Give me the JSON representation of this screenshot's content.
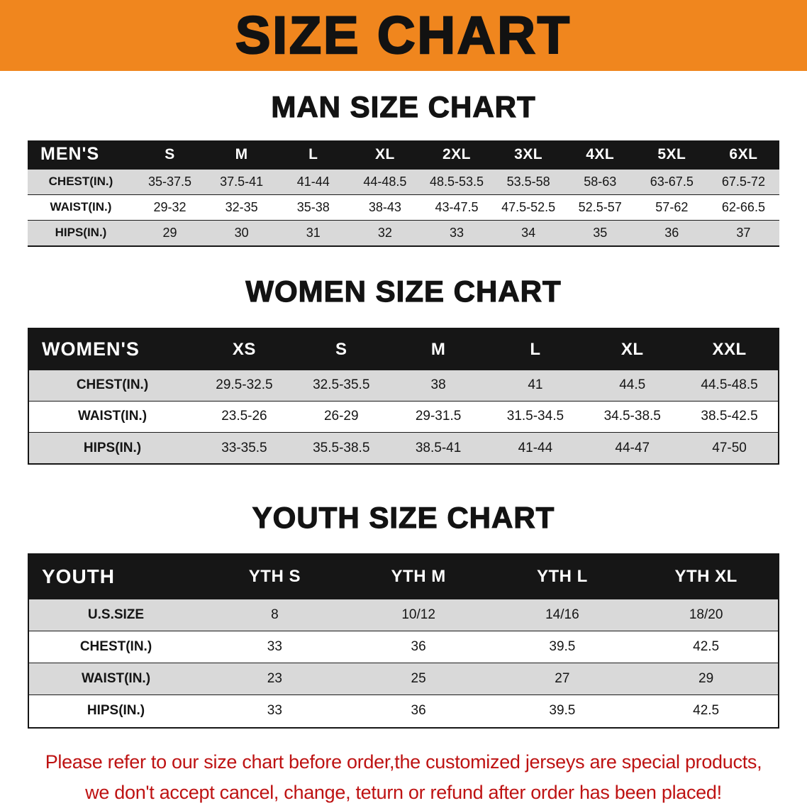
{
  "banner": {
    "title": "SIZE CHART"
  },
  "colors": {
    "banner-bg": "#F0861E",
    "header-bar": "#161616",
    "stripe": "#D9D9D9",
    "footer-red": "#BE1212"
  },
  "sections": {
    "men": {
      "heading": "MAN SIZE CHART"
    },
    "women": {
      "heading": "WOMEN SIZE CHART"
    },
    "youth": {
      "heading": "YOUTH SIZE CHART"
    }
  },
  "tables": {
    "men": {
      "header": [
        "MEN'S",
        "S",
        "M",
        "L",
        "XL",
        "2XL",
        "3XL",
        "4XL",
        "5XL",
        "6XL"
      ],
      "rows": [
        {
          "label": "CHEST(IN.)",
          "values": [
            "35-37.5",
            "37.5-41",
            "41-44",
            "44-48.5",
            "48.5-53.5",
            "53.5-58",
            "58-63",
            "63-67.5",
            "67.5-72"
          ]
        },
        {
          "label": "WAIST(IN.)",
          "values": [
            "29-32",
            "32-35",
            "35-38",
            "38-43",
            "43-47.5",
            "47.5-52.5",
            "52.5-57",
            "57-62",
            "62-66.5"
          ]
        },
        {
          "label": "HIPS(IN.)",
          "values": [
            "29",
            "30",
            "31",
            "32",
            "33",
            "34",
            "35",
            "36",
            "37"
          ]
        }
      ]
    },
    "women": {
      "header": [
        "WOMEN'S",
        "XS",
        "S",
        "M",
        "L",
        "XL",
        "XXL"
      ],
      "rows": [
        {
          "label": "CHEST(IN.)",
          "values": [
            "29.5-32.5",
            "32.5-35.5",
            "38",
            "41",
            "44.5",
            "44.5-48.5"
          ]
        },
        {
          "label": "WAIST(IN.)",
          "values": [
            "23.5-26",
            "26-29",
            "29-31.5",
            "31.5-34.5",
            "34.5-38.5",
            "38.5-42.5"
          ]
        },
        {
          "label": "HIPS(IN.)",
          "values": [
            "33-35.5",
            "35.5-38.5",
            "38.5-41",
            "41-44",
            "44-47",
            "47-50"
          ]
        }
      ]
    },
    "youth": {
      "header": [
        "YOUTH",
        "YTH S",
        "YTH M",
        "YTH L",
        "YTH XL"
      ],
      "rows": [
        {
          "label": "U.S.SIZE",
          "values": [
            "8",
            "10/12",
            "14/16",
            "18/20"
          ]
        },
        {
          "label": "CHEST(IN.)",
          "values": [
            "33",
            "36",
            "39.5",
            "42.5"
          ]
        },
        {
          "label": "WAIST(IN.)",
          "values": [
            "23",
            "25",
            "27",
            "29"
          ]
        },
        {
          "label": "HIPS(IN.)",
          "values": [
            "33",
            "36",
            "39.5",
            "42.5"
          ]
        }
      ]
    }
  },
  "footer": {
    "lines": [
      "Please refer to our size chart before order,the customized jerseys are special products,",
      "we don't accept cancel, change, teturn or refund after order has been placed!"
    ]
  }
}
